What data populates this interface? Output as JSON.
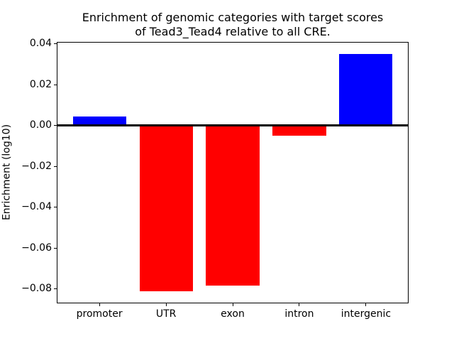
{
  "chart_data": {
    "type": "bar",
    "title": "Enrichment of genomic categories with target scores\nof Tead3_Tead4 relative to all CRE.",
    "title_lines": [
      "Enrichment of genomic categories with target scores",
      "of Tead3_Tead4 relative to all CRE."
    ],
    "xlabel": "",
    "ylabel": "Enrichment (log10)",
    "categories": [
      "promoter",
      "UTR",
      "exon",
      "intron",
      "intergenic"
    ],
    "values": [
      0.0045,
      -0.0813,
      -0.0784,
      -0.0048,
      0.0352
    ],
    "bar_colors": [
      "#0000ff",
      "#ff0000",
      "#ff0000",
      "#ff0000",
      "#0000ff"
    ],
    "positive_color": "#0000ff",
    "negative_color": "#ff0000",
    "ylim": [
      -0.0871,
      0.041
    ],
    "xlim": [
      -0.64,
      4.64
    ],
    "yticks": [
      0.04,
      0.02,
      0.0,
      -0.02,
      -0.04,
      -0.06,
      -0.08
    ],
    "ytick_labels": [
      "0.04",
      "0.02",
      "0.00",
      "−0.02",
      "−0.04",
      "−0.06",
      "−0.08"
    ],
    "bar_width_fraction": 0.8,
    "zero_line": true,
    "grid": false,
    "legend_position": "none",
    "axis_color": "#000000",
    "background_color": "#ffffff"
  }
}
